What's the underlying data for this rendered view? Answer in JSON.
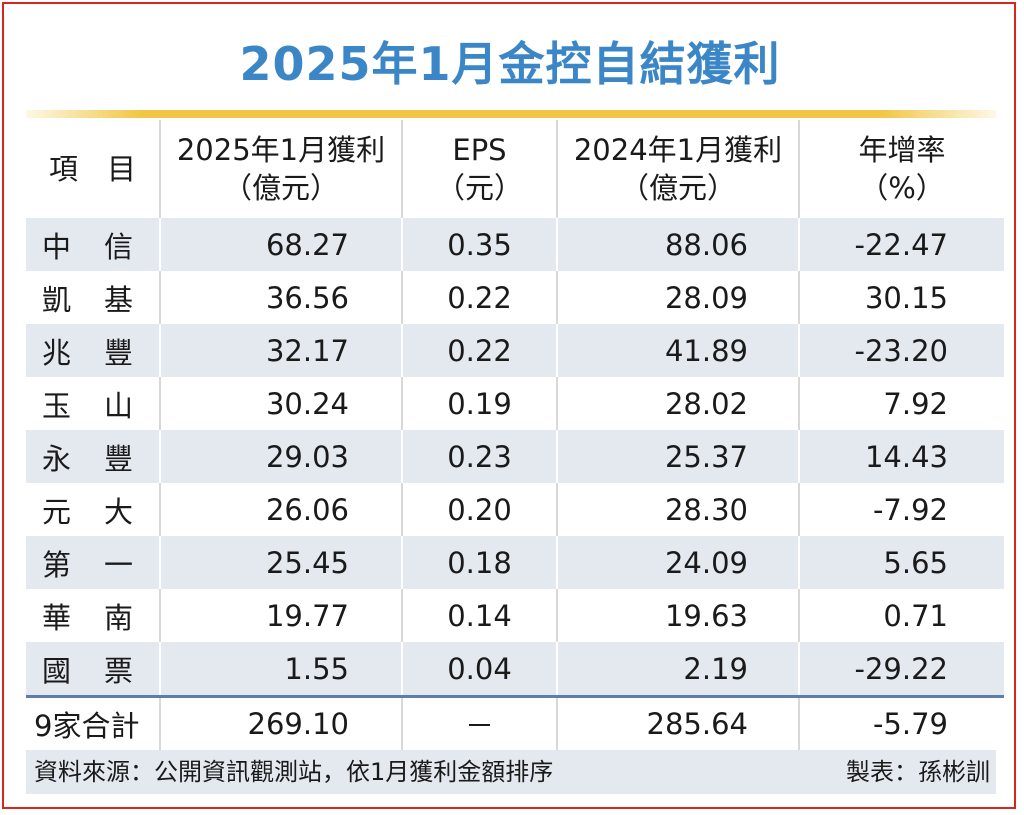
{
  "title": "2025年1月金控自結獲利",
  "headers": {
    "item": "項　目",
    "profit2025": [
      "2025年1月獲利",
      "（億元）"
    ],
    "eps": [
      "EPS",
      "（元）"
    ],
    "profit2024": [
      "2024年1月獲利",
      "（億元）"
    ],
    "growth": [
      "年增率",
      "（%）"
    ]
  },
  "rows": [
    {
      "name": [
        "中",
        "信"
      ],
      "profit2025": "68.27",
      "eps": "0.35",
      "profit2024": "88.06",
      "growth": "-22.47"
    },
    {
      "name": [
        "凱",
        "基"
      ],
      "profit2025": "36.56",
      "eps": "0.22",
      "profit2024": "28.09",
      "growth": "30.15"
    },
    {
      "name": [
        "兆",
        "豐"
      ],
      "profit2025": "32.17",
      "eps": "0.22",
      "profit2024": "41.89",
      "growth": "-23.20"
    },
    {
      "name": [
        "玉",
        "山"
      ],
      "profit2025": "30.24",
      "eps": "0.19",
      "profit2024": "28.02",
      "growth": "7.92"
    },
    {
      "name": [
        "永",
        "豐"
      ],
      "profit2025": "29.03",
      "eps": "0.23",
      "profit2024": "25.37",
      "growth": "14.43"
    },
    {
      "name": [
        "元",
        "大"
      ],
      "profit2025": "26.06",
      "eps": "0.20",
      "profit2024": "28.30",
      "growth": "-7.92"
    },
    {
      "name": [
        "第",
        "一"
      ],
      "profit2025": "25.45",
      "eps": "0.18",
      "profit2024": "24.09",
      "growth": "5.65"
    },
    {
      "name": [
        "華",
        "南"
      ],
      "profit2025": "19.77",
      "eps": "0.14",
      "profit2024": "19.63",
      "growth": "0.71"
    },
    {
      "name": [
        "國",
        "票"
      ],
      "profit2025": "1.55",
      "eps": "0.04",
      "profit2024": "2.19",
      "growth": "-29.22"
    }
  ],
  "total": {
    "name": "9家合計",
    "profit2025": "269.10",
    "eps": "－",
    "profit2024": "285.64",
    "growth": "-5.79"
  },
  "footer": {
    "source": "資料來源：公開資訊觀測站，依1月獲利金額排序",
    "maker": "製表：孫彬訓"
  },
  "colors": {
    "title": "#3b86c6",
    "border": "#d7261d",
    "stripe": "#e4e9f0",
    "rule": "#f1c644"
  }
}
